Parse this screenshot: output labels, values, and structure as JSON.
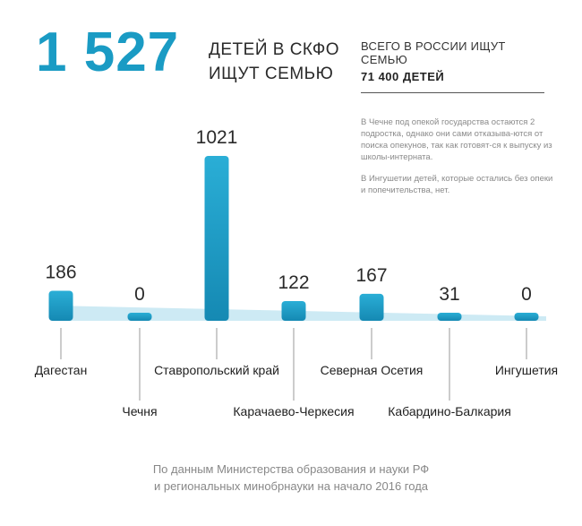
{
  "header": {
    "total": "1 527",
    "headline_line1": "ДЕТЕЙ В СКФО",
    "headline_line2": "ИЩУТ СЕМЬЮ"
  },
  "russia": {
    "label": "ВСЕГО В РОССИИ ИЩУТ СЕМЬЮ",
    "value": "71 400 ДЕТЕЙ"
  },
  "notes": [
    "В Чечне под опекой государства остаются 2 подростка, однако они сами отказыва-ются от поиска опекунов, так как готовят-ся к выпуску из школы-интерната.",
    "В Ингушетии детей, которые остались без опеки и попечительства, нет."
  ],
  "source": {
    "line1": "По данным Министерства образования и науки РФ",
    "line2": "и региональных минобрнауки на начало 2016 года"
  },
  "colors": {
    "accent": "#1a9bc4",
    "bar_top": "#2aaed6",
    "bar_bottom": "#1589b3",
    "shadow": "#cdeaf4"
  },
  "chart_data": {
    "type": "bar",
    "categories": [
      "Дагестан",
      "Чечня",
      "Ставропольский край",
      "Карачаево-Черкесия",
      "Северная Осетия",
      "Кабардино-Балкария",
      "Ингушетия"
    ],
    "values": [
      186,
      0,
      1021,
      122,
      167,
      31,
      0
    ],
    "value_labels": [
      "186",
      "0",
      "1021",
      "122",
      "167",
      "31",
      "0"
    ],
    "ylim": [
      0,
      1021
    ],
    "grid": false,
    "legend": "none"
  }
}
